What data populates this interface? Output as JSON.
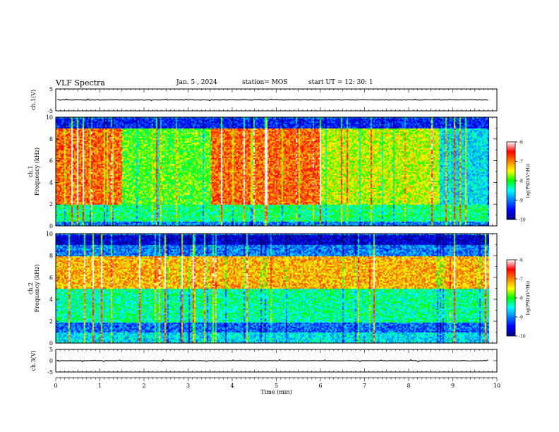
{
  "header": {
    "title": "VLF Spectra",
    "date": "Jan. 5 , 2024",
    "station": "station= MOS",
    "start": "start  UT =   12: 30: 1"
  },
  "chart_data": {
    "type": "heatmap",
    "xlabel": "Time (min)",
    "xlim": [
      0,
      10
    ],
    "x_ticks": [
      "0",
      "1",
      "2",
      "3",
      "4",
      "5",
      "6",
      "7",
      "8",
      "9",
      "10"
    ],
    "data_end_min": 9.82,
    "panels": [
      {
        "kind": "waveform",
        "ylabel": "ch.1(V)",
        "ylim": [
          -5,
          5
        ],
        "y_ticks": [
          "5",
          "-5"
        ],
        "baseline": 0
      },
      {
        "kind": "spectrogram",
        "ylabel": "ch.1\nFrequency (kHz)",
        "ylim": [
          0,
          10
        ],
        "y_ticks": [
          "0",
          "2",
          "4",
          "6",
          "8",
          "10"
        ],
        "colorbar": {
          "label": "log(PSD)(V²/Hz)",
          "range": [
            -10,
            -6
          ],
          "ticks": [
            "-6",
            "-7",
            "-8",
            "-9",
            "-10"
          ]
        },
        "bands_log_psd": [
          {
            "name": "upper band 9-10 kHz",
            "f": [
              9,
              10
            ],
            "level": -9.4
          },
          {
            "name": "main band 2-9 kHz, 0-1.5 min",
            "f": [
              2,
              9
            ],
            "t": [
              0,
              1.5
            ],
            "level": -6.9
          },
          {
            "name": "main band 2-9 kHz, 1.5-3.5 min",
            "f": [
              2,
              9
            ],
            "t": [
              1.5,
              3.5
            ],
            "level": -7.9
          },
          {
            "name": "main band 2-9 kHz, 3.5-6 min",
            "f": [
              2,
              9
            ],
            "t": [
              3.5,
              6
            ],
            "level": -6.9
          },
          {
            "name": "main band 2-9 kHz, 6-8.7 min",
            "f": [
              2,
              9
            ],
            "t": [
              6,
              8.7
            ],
            "level": -7.6
          },
          {
            "name": "main band 2-9 kHz, 8.7-9.8 min",
            "f": [
              2,
              9
            ],
            "t": [
              8.7,
              9.82
            ],
            "level": -8.6
          },
          {
            "name": "low band 0.5-2 kHz",
            "f": [
              0.5,
              2
            ],
            "level": -8.2
          }
        ]
      },
      {
        "kind": "spectrogram",
        "ylabel": "ch.2\nFrequency (kHz)",
        "ylim": [
          0,
          10
        ],
        "y_ticks": [
          "0",
          "2",
          "4",
          "6",
          "8",
          "10"
        ],
        "colorbar": {
          "label": "log(PSD)(V²/Hz)",
          "range": [
            -10,
            -6
          ],
          "ticks": [
            "-6",
            "-7",
            "-8",
            "-9",
            "-10"
          ]
        },
        "bands_log_psd": [
          {
            "name": "upper band 9-10 kHz",
            "f": [
              9,
              10
            ],
            "level": -9.7
          },
          {
            "name": "band 5-8 kHz",
            "f": [
              5,
              8
            ],
            "level": -7.2
          },
          {
            "name": "band 2-5 kHz",
            "f": [
              2,
              5
            ],
            "level": -8.3
          },
          {
            "name": "band 1-2 kHz",
            "f": [
              1,
              2
            ],
            "level": -9.1
          },
          {
            "name": "band 0-1 kHz",
            "f": [
              0,
              1
            ],
            "level": -8.6
          }
        ]
      },
      {
        "kind": "waveform",
        "ylabel": "ch.3(V)",
        "ylim": [
          -5,
          5
        ],
        "y_ticks": [
          "5",
          "0",
          "-5"
        ],
        "baseline": 0
      }
    ]
  }
}
